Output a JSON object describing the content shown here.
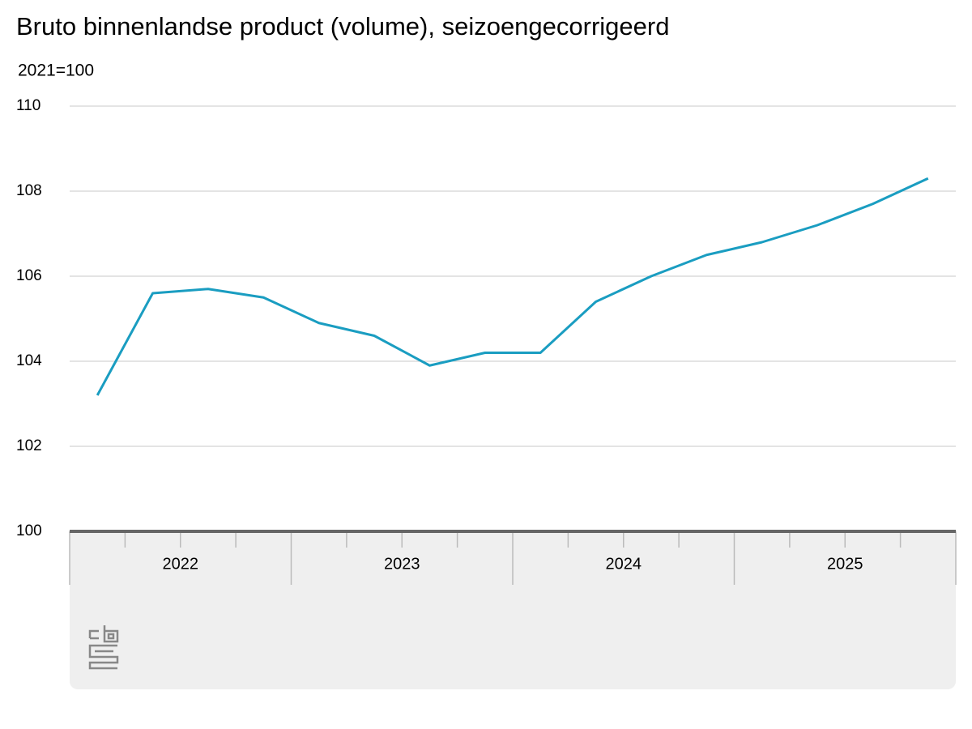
{
  "chart_data": {
    "type": "line",
    "title": "Bruto binnenlandse product (volume), seizoengecorrigeerd",
    "subtitle": "2021=100",
    "categories": [
      null,
      null,
      null,
      null,
      null,
      null,
      null,
      null,
      null,
      null,
      null,
      null,
      null,
      null,
      null,
      null
    ],
    "groups": [
      "2022",
      "2023",
      "2024",
      "2025"
    ],
    "series": [
      {
        "color": "#1a9dc1",
        "values": [
          103.2,
          105.6,
          105.7,
          105.5,
          104.9,
          104.6,
          103.9,
          104.2,
          104.2,
          105.4,
          106.0,
          106.5,
          106.8,
          107.2,
          107.7,
          108.3
        ]
      }
    ],
    "ylim": [
      100,
      110
    ],
    "yticks": [
      100,
      102,
      104,
      106,
      108,
      110
    ],
    "grid": true
  }
}
